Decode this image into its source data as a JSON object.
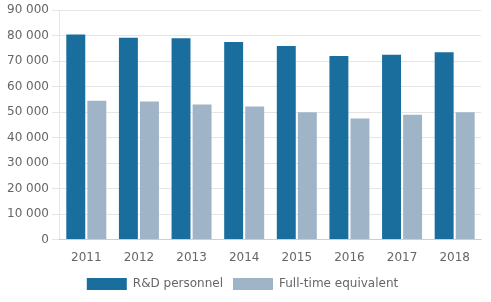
{
  "chart_data": {
    "type": "bar",
    "categories": [
      "2011",
      "2012",
      "2013",
      "2014",
      "2015",
      "2016",
      "2017",
      "2018"
    ],
    "series": [
      {
        "name": "R&D personnel",
        "color": "#1a6e9e",
        "values": [
          80500,
          79200,
          79000,
          77500,
          76000,
          72000,
          72500,
          73500
        ]
      },
      {
        "name": "Full-time equivalent",
        "color": "#a0b4c8",
        "values": [
          54500,
          54200,
          53000,
          52200,
          50000,
          47500,
          49000,
          50000
        ]
      }
    ],
    "ylim": [
      0,
      90000
    ],
    "yticks": [
      0,
      {
        "value": 10000,
        "label": "10 000"
      },
      {
        "value": 20000,
        "label": "20 000"
      },
      {
        "value": 30000,
        "label": "30 000"
      },
      {
        "value": 40000,
        "label": "40 000"
      },
      {
        "value": 50000,
        "label": "50 000"
      },
      {
        "value": 60000,
        "label": "60 000"
      },
      {
        "value": 70000,
        "label": "70 000"
      },
      {
        "value": 80000,
        "label": "80 000"
      },
      {
        "value": 90000,
        "label": "90 000"
      }
    ],
    "grid": true,
    "legend": "bottom"
  }
}
